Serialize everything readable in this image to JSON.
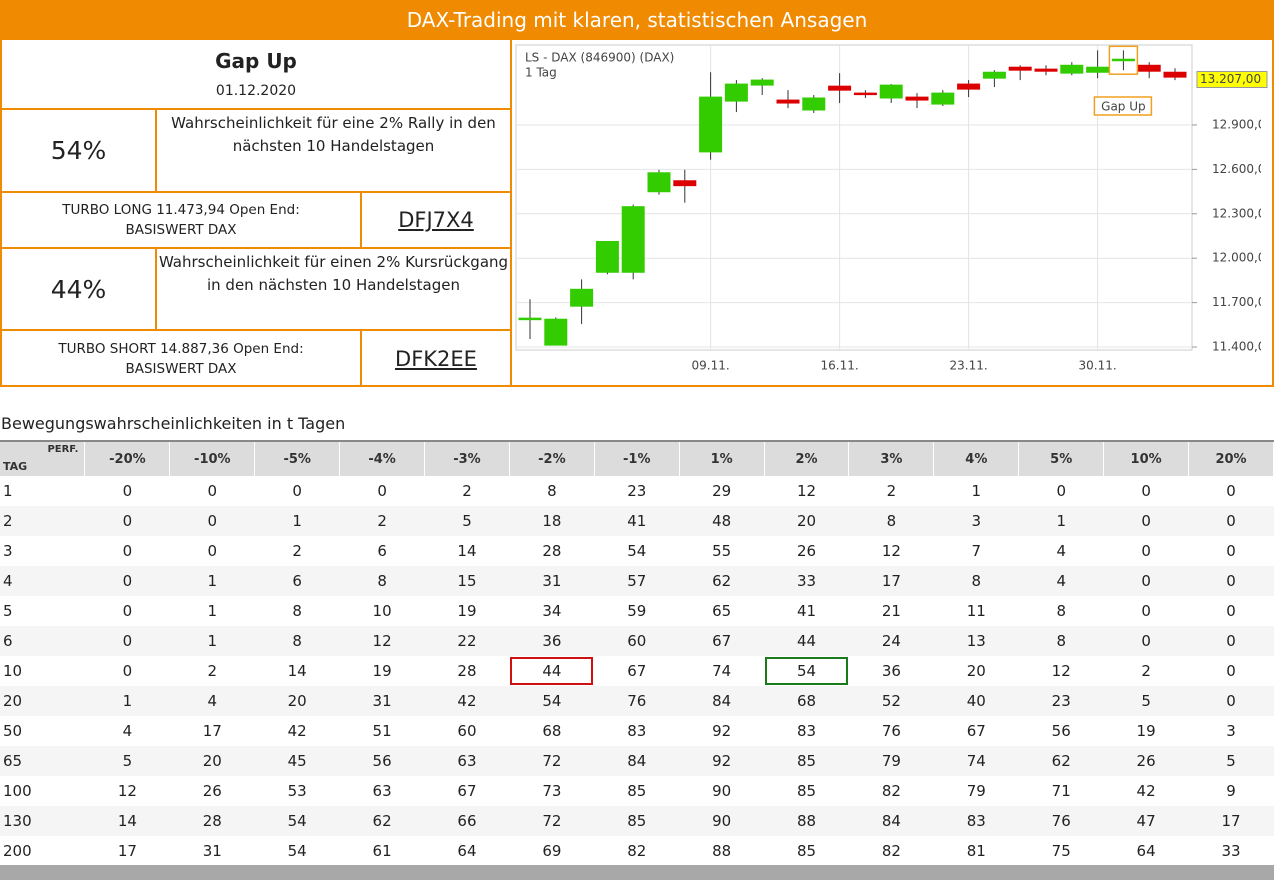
{
  "header": {
    "title": "DAX-Trading mit klaren, statistischen Ansagen"
  },
  "signal": {
    "title": "Gap Up",
    "date": "01.12.2020"
  },
  "long": {
    "probability": "54%",
    "text": "Wahrscheinlichkeit für eine 2% Rally in den nächsten 10 Handelstagen",
    "product": "TURBO LONG 11.473,94 Open End: BASISWERT DAX",
    "wkn": "DFJ7X4"
  },
  "short": {
    "probability": "44%",
    "text": "Wahrscheinlichkeit für einen 2% Kursrückgang in den nächsten 10 Handelstagen",
    "product": "TURBO SHORT 14.887,36 Open End: BASISWERT DAX",
    "wkn": "DFK2EE"
  },
  "chart_data": {
    "type": "candlestick",
    "title": "LS - DAX (846900) (DAX)",
    "subtitle": "1 Tag",
    "categories": [
      null,
      null,
      null,
      null,
      null,
      null,
      null,
      "09.11.",
      null,
      null,
      null,
      null,
      "16.11.",
      null,
      null,
      null,
      null,
      "23.11.",
      null,
      null,
      null,
      null,
      "30.11.",
      null,
      null,
      null
    ],
    "open": [
      11590,
      11413,
      11676,
      11905,
      11905,
      12449,
      12523,
      12718,
      13061,
      13169,
      13068,
      13001,
      13162,
      13115,
      13082,
      13088,
      13041,
      13176,
      13216,
      13290,
      13277,
      13250,
      13256,
      13337,
      13303,
      13256
    ],
    "high": [
      11723,
      11600,
      11857,
      12113,
      12362,
      12597,
      12597,
      13256,
      13203,
      13216,
      13135,
      13102,
      13250,
      13135,
      13176,
      13115,
      13135,
      13203,
      13270,
      13303,
      13303,
      13324,
      13404,
      13404,
      13324,
      13283
    ],
    "low": [
      11454,
      11413,
      11555,
      11891,
      11857,
      12429,
      12375,
      12665,
      12987,
      13102,
      13014,
      12981,
      13048,
      13082,
      13048,
      13014,
      13028,
      13088,
      13156,
      13203,
      13236,
      13236,
      13216,
      13270,
      13216,
      13203
    ],
    "close": [
      11595,
      11588,
      11790,
      12113,
      12348,
      12577,
      12490,
      13088,
      13176,
      13203,
      13048,
      13082,
      13135,
      13108,
      13169,
      13068,
      13115,
      13142,
      13256,
      13270,
      13263,
      13303,
      13290,
      13344,
      13263,
      13223
    ],
    "up_color": "#33cc00",
    "down_color": "#dd0000",
    "ylim": [
      11380,
      13440
    ],
    "yticks": [
      {
        "value": 11400,
        "label": "11.400,00"
      },
      {
        "value": 11700,
        "label": "11.700,00"
      },
      {
        "value": 12000,
        "label": "12.000,00"
      },
      {
        "value": 12300,
        "label": "12.300,00"
      },
      {
        "value": 12600,
        "label": "12.600,00"
      },
      {
        "value": 12900,
        "label": "12.900,00"
      }
    ],
    "last_price": {
      "value": 13207,
      "label": "13.207,00"
    },
    "annotation": "Gap Up",
    "grid": true
  },
  "table": {
    "title": "Bewegungswahrscheinlichkeiten in t Tagen",
    "corner_top": "PERF.",
    "corner_bottom": "TAG",
    "columns": [
      "-20%",
      "-10%",
      "-5%",
      "-4%",
      "-3%",
      "-2%",
      "-1%",
      "1%",
      "2%",
      "3%",
      "4%",
      "5%",
      "10%",
      "20%"
    ],
    "rows": [
      [
        1,
        0,
        0,
        0,
        0,
        2,
        8,
        23,
        29,
        12,
        2,
        1,
        0,
        0,
        0
      ],
      [
        2,
        0,
        0,
        1,
        2,
        5,
        18,
        41,
        48,
        20,
        8,
        3,
        1,
        0,
        0
      ],
      [
        3,
        0,
        0,
        2,
        6,
        14,
        28,
        54,
        55,
        26,
        12,
        7,
        4,
        0,
        0
      ],
      [
        4,
        0,
        1,
        6,
        8,
        15,
        31,
        57,
        62,
        33,
        17,
        8,
        4,
        0,
        0
      ],
      [
        5,
        0,
        1,
        8,
        10,
        19,
        34,
        59,
        65,
        41,
        21,
        11,
        8,
        0,
        0
      ],
      [
        6,
        0,
        1,
        8,
        12,
        22,
        36,
        60,
        67,
        44,
        24,
        13,
        8,
        0,
        0
      ],
      [
        10,
        0,
        2,
        14,
        19,
        28,
        44,
        67,
        74,
        54,
        36,
        20,
        12,
        2,
        0
      ],
      [
        20,
        1,
        4,
        20,
        31,
        42,
        54,
        76,
        84,
        68,
        52,
        40,
        23,
        5,
        0
      ],
      [
        50,
        4,
        17,
        42,
        51,
        60,
        68,
        83,
        92,
        83,
        76,
        67,
        56,
        19,
        3
      ],
      [
        65,
        5,
        20,
        45,
        56,
        63,
        72,
        84,
        92,
        85,
        79,
        74,
        62,
        26,
        5
      ],
      [
        100,
        12,
        26,
        53,
        63,
        67,
        73,
        85,
        90,
        85,
        82,
        79,
        71,
        42,
        9
      ],
      [
        130,
        14,
        28,
        54,
        62,
        66,
        72,
        85,
        90,
        88,
        84,
        83,
        76,
        47,
        17
      ],
      [
        200,
        17,
        31,
        54,
        61,
        64,
        69,
        82,
        88,
        85,
        82,
        81,
        75,
        64,
        33
      ]
    ],
    "highlights": [
      {
        "row": 6,
        "column": 6,
        "color": "#d01010"
      },
      {
        "row": 6,
        "column": 9,
        "color": "#1a7a1a"
      }
    ]
  }
}
